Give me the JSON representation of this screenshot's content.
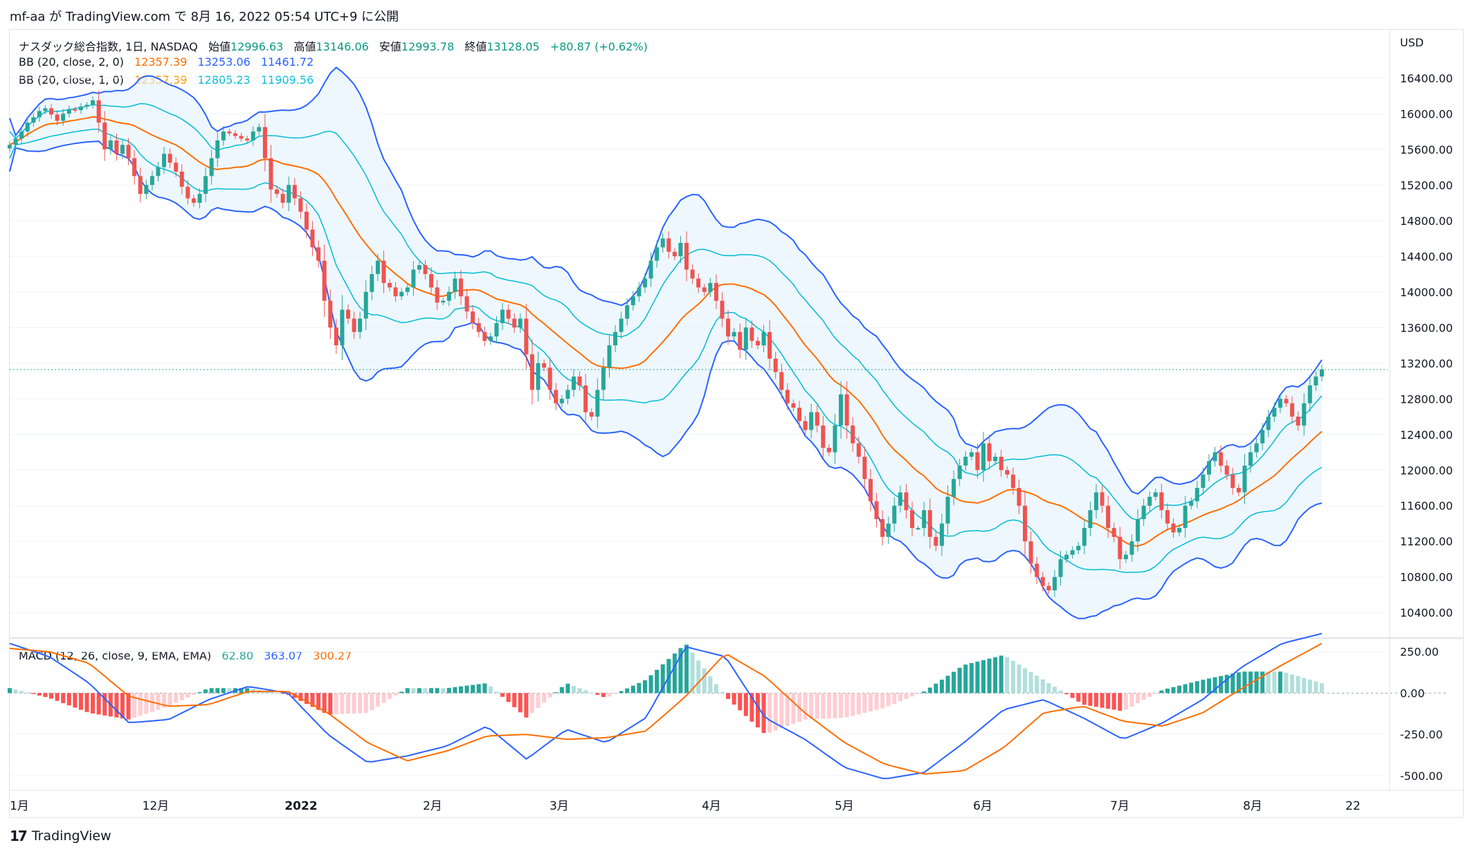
{
  "byline": "mf-aa が TradingView.com で 8月 16, 2022 05:54 UTC+9 に公開",
  "currency": "USD",
  "legend": {
    "title": "ナスダック総合指数, 1日, NASDAQ",
    "ohlc": {
      "o_label": "始値",
      "o": "12996.63",
      "h_label": "高値",
      "h": "13146.06",
      "l_label": "安値",
      "l": "12993.78",
      "c_label": "終値",
      "c": "13128.05",
      "chg": "+80.87 (+0.62%)"
    },
    "bb2": {
      "label": "BB (20, close, 2, 0)",
      "basis": "12357.39",
      "upper": "13253.06",
      "lower": "11461.72"
    },
    "bb1": {
      "label": "BB (20, close, 1, 0)",
      "basis": "12357.39",
      "upper": "12805.23",
      "lower": "11909.56"
    },
    "macd": {
      "label": "MACD (12, 26, close, 9, EMA, EMA)",
      "hist": "62.80",
      "macd": "363.07",
      "signal": "300.27"
    }
  },
  "colors": {
    "up": "#26a69a",
    "down": "#ef5350",
    "basis": "#ff6d00",
    "bb2": "#2962ff",
    "bb1": "#00bcd4",
    "fill": "#e3f2fd",
    "grid": "#f0f3fa",
    "axis_text": "#131722"
  },
  "footer": {
    "logo": "17",
    "brand": "TradingView"
  },
  "chart_data": [
    {
      "type": "candlestick",
      "title": "ナスダック総合指数, 1日, NASDAQ",
      "y_axis_ticks": [
        "16400.00",
        "16000.00",
        "15600.00",
        "15200.00",
        "14800.00",
        "14400.00",
        "14000.00",
        "13600.00",
        "13200.00",
        "12800.00",
        "12400.00",
        "12000.00",
        "11600.00",
        "11200.00",
        "10800.00",
        "10400.00"
      ],
      "x_axis_ticks": [
        "1月",
        "12月",
        "2022",
        "2月",
        "3月",
        "4月",
        "5月",
        "6月",
        "7月",
        "8月",
        "22"
      ],
      "ylim": [
        10130,
        16810
      ],
      "last_close": 13128.05,
      "close_series": [
        15650,
        15720,
        15800,
        15900,
        15960,
        16030,
        16060,
        15990,
        15920,
        16000,
        16050,
        16040,
        16080,
        16100,
        16150,
        15900,
        15600,
        15700,
        15550,
        15650,
        15500,
        15300,
        15100,
        15200,
        15300,
        15400,
        15550,
        15450,
        15350,
        15180,
        15050,
        15000,
        15100,
        15300,
        15500,
        15700,
        15800,
        15780,
        15750,
        15720,
        15700,
        15800,
        15850,
        15500,
        15150,
        15100,
        15000,
        15200,
        15050,
        14900,
        14700,
        14500,
        14350,
        13900,
        13600,
        13400,
        13800,
        13700,
        13550,
        13700,
        14000,
        14200,
        14350,
        14100,
        14050,
        13950,
        14000,
        14050,
        14250,
        14300,
        14200,
        14050,
        13880,
        13900,
        14000,
        14150,
        13950,
        13780,
        13650,
        13550,
        13450,
        13500,
        13650,
        13800,
        13700,
        13600,
        13700,
        13300,
        12900,
        13200,
        13150,
        12900,
        12750,
        12800,
        12900,
        13050,
        12950,
        12650,
        12600,
        12900,
        13150,
        13400,
        13550,
        13700,
        13850,
        13950,
        14050,
        14150,
        14350,
        14500,
        14600,
        14450,
        14400,
        14550,
        14250,
        14150,
        14050,
        14000,
        14100,
        13900,
        13700,
        13500,
        13550,
        13350,
        13600,
        13450,
        13400,
        13550,
        13250,
        13100,
        12900,
        12750,
        12700,
        12550,
        12450,
        12650,
        12500,
        12250,
        12200,
        12500,
        12850,
        12500,
        12300,
        12150,
        11900,
        11650,
        11450,
        11250,
        11400,
        11600,
        11750,
        11550,
        11350,
        11350,
        11550,
        11250,
        11150,
        11400,
        11700,
        11900,
        12050,
        12150,
        12200,
        12000,
        12300,
        12100,
        12150,
        12000,
        11950,
        11800,
        11600,
        11200,
        10950,
        10800,
        10700,
        10650,
        10800,
        11000,
        11050,
        11100,
        11150,
        11350,
        11550,
        11750,
        11600,
        11350,
        11250,
        11000,
        11050,
        11200,
        11450,
        11600,
        11700,
        11750,
        11550,
        11400,
        11300,
        11350,
        11600,
        11650,
        11800,
        11950,
        12100,
        12200,
        12050,
        11950,
        11800,
        11750,
        12050,
        12200,
        12300,
        12450,
        12600,
        12700,
        12800,
        12750,
        12600,
        12500,
        12750,
        12950,
        13050,
        13130
      ],
      "annotations": [
        "Bollinger Bands (20, 2) upper/lower with shaded fill",
        "Bollinger Bands (20, 1) inner band",
        "20-period basis line"
      ]
    },
    {
      "type": "line",
      "title": "MACD (12, 26, close, 9, EMA, EMA)",
      "y_axis_ticks": [
        "250.00",
        "0.00",
        "-250.00",
        "-500.00"
      ],
      "ylim": [
        -580,
        320
      ],
      "macd_series": [
        300,
        220,
        60,
        -180,
        -160,
        -40,
        40,
        0,
        -250,
        -420,
        -380,
        -320,
        -200,
        -400,
        -220,
        -300,
        -150,
        280,
        220,
        -150,
        -280,
        -450,
        -520,
        -480,
        -300,
        -100,
        -40,
        -150,
        -280,
        -180,
        -40,
        160,
        300,
        360
      ],
      "signal_series": [
        270,
        250,
        180,
        -20,
        -80,
        -70,
        10,
        10,
        -120,
        -300,
        -410,
        -350,
        -260,
        -250,
        -280,
        -270,
        -230,
        -20,
        240,
        100,
        -120,
        -300,
        -430,
        -490,
        -470,
        -330,
        -120,
        -80,
        -170,
        -200,
        -120,
        30,
        170,
        300
      ],
      "histogram_labels": [
        "62.80",
        "363.07",
        "300.27"
      ]
    }
  ]
}
